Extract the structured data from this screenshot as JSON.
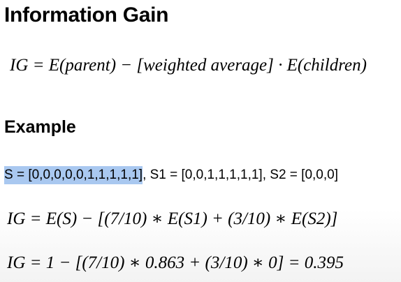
{
  "slide": {
    "title": "Information Gain",
    "main_formula": "IG = E(parent) − [weighted average] · E(children)",
    "example_heading": "Example",
    "sets": {
      "s_highlighted": "S = [0,0,0,0,0,1,1,1,1,1]",
      "rest": ", S1 = [0,0,1,1,1,1,1], S2 = [0,0,0]"
    },
    "formula_1": "IG = E(S) − [(7/10) ∗ E(S1) + (3/10) ∗ E(S2)]",
    "formula_2": "IG = 1 − [(7/10) ∗ 0.863 + (3/10) ∗ 0] = 0.395"
  },
  "colors": {
    "highlight": "#a9c8f0",
    "text": "#000000"
  }
}
